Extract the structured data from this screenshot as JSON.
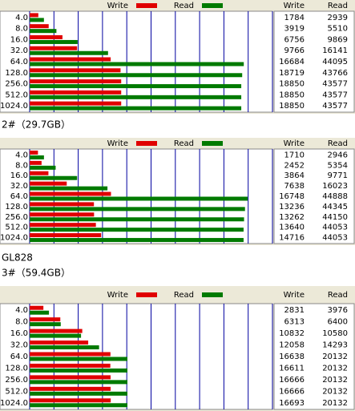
{
  "chart_data": [
    {
      "type": "bar",
      "orientation": "horizontal",
      "categories": [
        "4.0",
        "8.0",
        "16.0",
        "32.0",
        "64.0",
        "128.0",
        "256.0",
        "512.0",
        "1024.0"
      ],
      "series": [
        {
          "name": "Write",
          "color": "#e00000",
          "values": [
            1784,
            3919,
            6756,
            9766,
            16684,
            18719,
            18850,
            18850,
            18850
          ]
        },
        {
          "name": "Read",
          "color": "#007a00",
          "values": [
            2939,
            5510,
            9869,
            16141,
            44095,
            43766,
            43577,
            43577,
            43577
          ]
        }
      ],
      "xlim": [
        0,
        50000
      ],
      "xticks": [
        0,
        5000,
        10000,
        15000,
        20000,
        25000,
        30000,
        35000,
        40000,
        45000,
        50000
      ],
      "grid": true
    },
    {
      "type": "bar",
      "orientation": "horizontal",
      "categories": [
        "4.0",
        "8.0",
        "16.0",
        "32.0",
        "64.0",
        "128.0",
        "256.0",
        "512.0",
        "1024.0"
      ],
      "series": [
        {
          "name": "Write",
          "color": "#e00000",
          "values": [
            1710,
            2452,
            3864,
            7638,
            16748,
            13236,
            13262,
            13640,
            14716
          ]
        },
        {
          "name": "Read",
          "color": "#007a00",
          "values": [
            2946,
            5354,
            9771,
            16023,
            44888,
            44345,
            44150,
            44053,
            44053
          ]
        }
      ],
      "xlim": [
        0,
        50000
      ],
      "xticks": [
        0,
        5000,
        10000,
        15000,
        20000,
        25000,
        30000,
        35000,
        40000,
        45000,
        50000
      ],
      "grid": true
    },
    {
      "type": "bar",
      "orientation": "horizontal",
      "categories": [
        "4.0",
        "8.0",
        "16.0",
        "32.0",
        "64.0",
        "128.0",
        "256.0",
        "512.0",
        "1024.0"
      ],
      "series": [
        {
          "name": "Write",
          "color": "#e00000",
          "values": [
            2831,
            6313,
            10832,
            12058,
            16638,
            16611,
            16666,
            16666,
            16693
          ]
        },
        {
          "name": "Read",
          "color": "#007a00",
          "values": [
            3976,
            6400,
            10580,
            14293,
            20132,
            20132,
            20132,
            20132,
            20132
          ]
        }
      ],
      "xlim": [
        0,
        50000
      ],
      "xticks": [
        0,
        5000,
        10000,
        15000,
        20000,
        25000,
        30000,
        35000,
        40000,
        45000,
        50000
      ],
      "grid": true
    }
  ],
  "captions": [
    "2#（29.7GB）",
    "GL828",
    "3#（59.4GB）"
  ]
}
